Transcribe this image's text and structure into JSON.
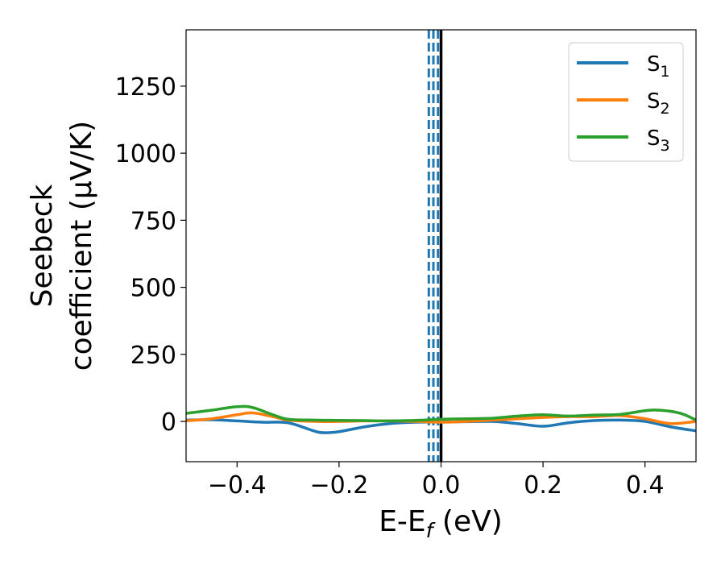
{
  "chart_data": {
    "type": "line",
    "title": "",
    "xlabel": "E-E",
    "xlabel_sub": "f",
    "xlabel_unit": " (eV)",
    "ylabel_line1": "Seebeck",
    "ylabel_line2": "coefficient  (μV/K)",
    "xlim": [
      -0.5,
      0.5
    ],
    "ylim": [
      -150,
      1460
    ],
    "xticks": [
      -0.4,
      -0.2,
      0.0,
      0.2,
      0.4
    ],
    "xtick_labels": [
      "−0.4",
      "−0.2",
      "0.0",
      "0.2",
      "0.4"
    ],
    "yticks": [
      0,
      250,
      500,
      750,
      1000,
      1250
    ],
    "ytick_labels": [
      "0",
      "250",
      "500",
      "750",
      "1000",
      "1250"
    ],
    "legend_position": "top-right",
    "grid": false,
    "vertical_lines": [
      {
        "x": 0.0,
        "style": "solid",
        "color": "#000000"
      },
      {
        "x": -0.024,
        "style": "dashed",
        "color": "#1f77b4"
      },
      {
        "x": -0.015,
        "style": "dashed",
        "color": "#1f77b4"
      },
      {
        "x": -0.006,
        "style": "dashed",
        "color": "#1f77b4"
      }
    ],
    "series": [
      {
        "name": "S",
        "name_sub": "1",
        "color": "#1f77b4",
        "x": [
          -0.5,
          -0.45,
          -0.4,
          -0.35,
          -0.3,
          -0.25,
          -0.23,
          -0.2,
          -0.15,
          -0.1,
          -0.05,
          0.0,
          0.05,
          0.1,
          0.15,
          0.2,
          0.25,
          0.3,
          0.35,
          0.4,
          0.45,
          0.5
        ],
        "values": [
          5,
          6,
          2,
          -3,
          -5,
          -35,
          -42,
          -38,
          -20,
          -8,
          -3,
          -2,
          -1,
          0,
          -8,
          -18,
          -5,
          3,
          5,
          0,
          -20,
          -35
        ]
      },
      {
        "name": "S",
        "name_sub": "2",
        "color": "#ff7f0e",
        "x": [
          -0.5,
          -0.45,
          -0.4,
          -0.37,
          -0.33,
          -0.3,
          -0.25,
          -0.2,
          -0.15,
          -0.1,
          -0.05,
          0.0,
          0.05,
          0.1,
          0.15,
          0.2,
          0.25,
          0.3,
          0.35,
          0.4,
          0.45,
          0.5
        ],
        "values": [
          2,
          10,
          25,
          32,
          18,
          5,
          0,
          0,
          2,
          2,
          0,
          -3,
          0,
          5,
          10,
          15,
          18,
          18,
          22,
          10,
          -8,
          0
        ]
      },
      {
        "name": "S",
        "name_sub": "3",
        "color": "#2ca02c",
        "x": [
          -0.5,
          -0.45,
          -0.4,
          -0.37,
          -0.33,
          -0.3,
          -0.25,
          -0.2,
          -0.15,
          -0.1,
          -0.05,
          0.0,
          0.05,
          0.1,
          0.15,
          0.2,
          0.25,
          0.3,
          0.35,
          0.4,
          0.43,
          0.47,
          0.5
        ],
        "values": [
          30,
          42,
          55,
          52,
          25,
          8,
          5,
          4,
          3,
          2,
          4,
          8,
          10,
          12,
          20,
          25,
          20,
          24,
          26,
          40,
          42,
          30,
          5
        ]
      }
    ]
  }
}
